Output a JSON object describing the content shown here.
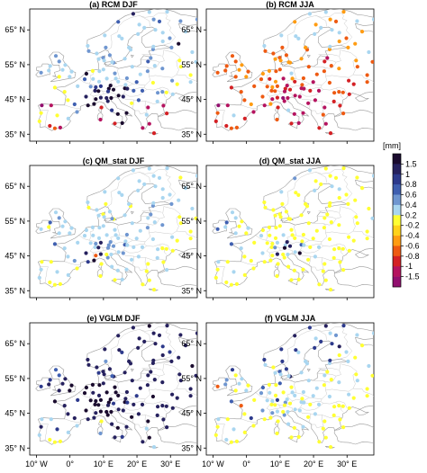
{
  "figure": {
    "panels": [
      {
        "title": "(a) RCM DJF",
        "season": "DJF",
        "method": "RCM"
      },
      {
        "title": "(b) RCM JJA",
        "season": "JJA",
        "method": "RCM"
      },
      {
        "title": "(c) QM_stat DJF",
        "season": "DJF",
        "method": "QM_stat"
      },
      {
        "title": "(d) QM_stat JJA",
        "season": "JJA",
        "method": "QM_stat"
      },
      {
        "title": "(e) VGLM DJF",
        "season": "DJF",
        "method": "VGLM"
      },
      {
        "title": "(f) VGLM JJA",
        "season": "JJA",
        "method": "VGLM"
      }
    ],
    "lat_ticks_left": [
      "35° N",
      "45° N",
      "55° N",
      "65° N"
    ],
    "lon_ticks": [
      "10° W",
      "0°",
      "10° E",
      "20° E",
      "30° E"
    ],
    "lat_range": [
      33,
      71
    ],
    "lon_range": [
      -12,
      38
    ],
    "colorbar": {
      "unit": "[mm]",
      "labels": [
        "1.5",
        "1",
        "0.8",
        "0.6",
        "0.4",
        "0.2",
        "-0.2",
        "-0.4",
        "-0.6",
        "-0.8",
        "-1",
        "-1.5"
      ],
      "colors": [
        "#1a0b2e",
        "#26215e",
        "#2d3a8c",
        "#3f5fb0",
        "#6f96d0",
        "#a9d6f0",
        "#ffff33",
        "#ffd21a",
        "#ff9c12",
        "#ee5a12",
        "#d42125",
        "#b5135f",
        "#92106f"
      ]
    }
  }
}
